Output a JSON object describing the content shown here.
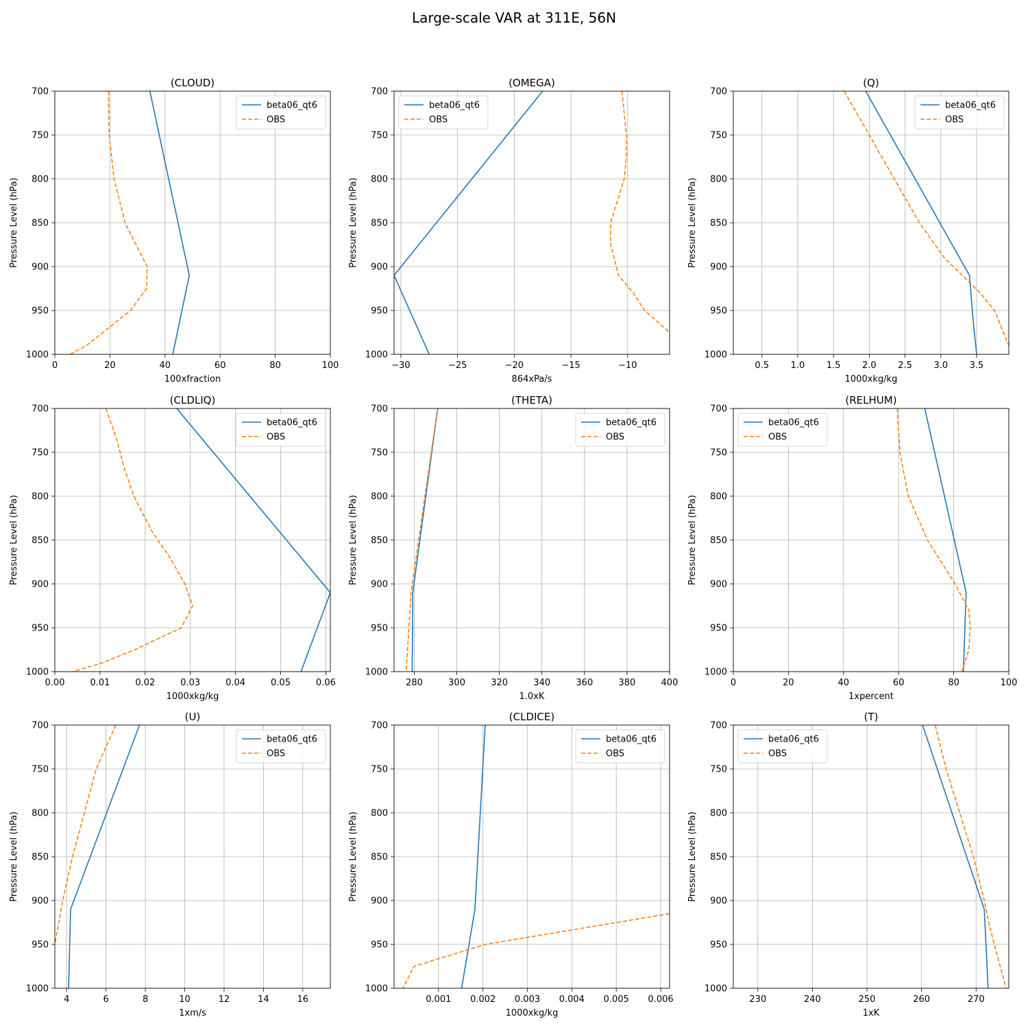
{
  "figure_title": "Large-scale VAR at 311E, 56N",
  "colors": {
    "model": "#1f77b4",
    "obs": "#ff7f0e",
    "grid": "#b0b0b0"
  },
  "chart_data": [
    {
      "type": "line",
      "title": "(CLOUD)",
      "xlabel": "100xfraction",
      "ylabel": "Pressure Level (hPa)",
      "xlim": [
        0,
        100
      ],
      "ylim": [
        1000,
        700
      ],
      "xticks": [
        0,
        20,
        40,
        60,
        80,
        100
      ],
      "xtick_labels": [
        "0",
        "20",
        "40",
        "60",
        "80",
        "100"
      ],
      "yticks": [
        700,
        750,
        800,
        850,
        900,
        950,
        1000
      ],
      "legend_loc": "top-right",
      "series": [
        {
          "name": "beta06_qt6",
          "style": "solid",
          "x": [
            34.5,
            48.8,
            42.8
          ],
          "y": [
            700,
            910,
            1000
          ]
        },
        {
          "name": "OBS",
          "style": "dashed",
          "x": [
            19.5,
            19.7,
            21.5,
            25.5,
            33.5,
            33.3,
            27.5,
            19.5,
            11.5,
            5.5
          ],
          "y": [
            700,
            750,
            800,
            850,
            900,
            925,
            950,
            970,
            990,
            1000
          ]
        }
      ]
    },
    {
      "type": "line",
      "title": "(OMEGA)",
      "xlabel": "864xPa/s",
      "ylabel": "Pressure Level (hPa)",
      "xlim": [
        -30.6,
        -6.3
      ],
      "ylim": [
        1000,
        700
      ],
      "xticks": [
        -30,
        -25,
        -20,
        -15,
        -10
      ],
      "xtick_labels": [
        "−30",
        "−25",
        "−20",
        "−15",
        "−10"
      ],
      "yticks": [
        700,
        750,
        800,
        850,
        900,
        950,
        1000
      ],
      "legend_loc": "top-left",
      "series": [
        {
          "name": "beta06_qt6",
          "style": "solid",
          "x": [
            -17.5,
            -30.6,
            -27.5
          ],
          "y": [
            700,
            910,
            1000
          ]
        },
        {
          "name": "OBS",
          "style": "dashed",
          "x": [
            -10.5,
            -10.1,
            -10.1,
            -10.3,
            -11.5,
            -11.5,
            -10.8,
            -9.5,
            -8.5,
            -6.3
          ],
          "y": [
            700,
            750,
            775,
            800,
            850,
            875,
            910,
            930,
            950,
            975
          ]
        }
      ]
    },
    {
      "type": "line",
      "title": "(Q)",
      "xlabel": "1000xkg/kg",
      "ylabel": "Pressure Level (hPa)",
      "xlim": [
        0.1,
        3.95
      ],
      "ylim": [
        1000,
        700
      ],
      "xticks": [
        0.5,
        1.0,
        1.5,
        2.0,
        2.5,
        3.0,
        3.5
      ],
      "xtick_labels": [
        "0.5",
        "1.0",
        "1.5",
        "2.0",
        "2.5",
        "3.0",
        "3.5"
      ],
      "yticks": [
        700,
        750,
        800,
        850,
        900,
        950,
        1000
      ],
      "legend_loc": "top-right",
      "series": [
        {
          "name": "beta06_qt6",
          "style": "solid",
          "x": [
            1.95,
            3.4,
            3.45,
            3.5
          ],
          "y": [
            700,
            910,
            960,
            1000
          ]
        },
        {
          "name": "OBS",
          "style": "dashed",
          "x": [
            1.65,
            2.0,
            2.35,
            2.7,
            3.05,
            3.3,
            3.55,
            3.75,
            3.95
          ],
          "y": [
            700,
            750,
            800,
            850,
            890,
            910,
            930,
            950,
            990
          ]
        }
      ]
    },
    {
      "type": "line",
      "title": "(CLDLIQ)",
      "xlabel": "1000xkg/kg",
      "ylabel": "Pressure Level (hPa)",
      "xlim": [
        0,
        0.061
      ],
      "ylim": [
        1000,
        700
      ],
      "xticks": [
        0.0,
        0.01,
        0.02,
        0.03,
        0.04,
        0.05,
        0.06
      ],
      "xtick_labels": [
        "0.00",
        "0.01",
        "0.02",
        "0.03",
        "0.04",
        "0.05",
        "0.06"
      ],
      "yticks": [
        700,
        750,
        800,
        850,
        900,
        950,
        1000
      ],
      "legend_loc": "top-right",
      "series": [
        {
          "name": "beta06_qt6",
          "style": "solid",
          "x": [
            0.027,
            0.061,
            0.0545
          ],
          "y": [
            700,
            910,
            1000
          ]
        },
        {
          "name": "OBS",
          "style": "dashed",
          "x": [
            0.0113,
            0.0137,
            0.0155,
            0.0175,
            0.0215,
            0.0255,
            0.0288,
            0.0305,
            0.028,
            0.0177,
            0.0105,
            0.004
          ],
          "y": [
            700,
            735,
            770,
            800,
            840,
            870,
            900,
            925,
            950,
            975,
            990,
            1000
          ]
        }
      ]
    },
    {
      "type": "line",
      "title": "(THETA)",
      "xlabel": "1.0xK",
      "ylabel": "Pressure Level (hPa)",
      "xlim": [
        270.5,
        400
      ],
      "ylim": [
        1000,
        700
      ],
      "xticks": [
        280,
        300,
        320,
        340,
        360,
        380,
        400
      ],
      "xtick_labels": [
        "280",
        "300",
        "320",
        "340",
        "360",
        "380",
        "400"
      ],
      "yticks": [
        700,
        750,
        800,
        850,
        900,
        950,
        1000
      ],
      "legend_loc": "top-right",
      "series": [
        {
          "name": "beta06_qt6",
          "style": "solid",
          "x": [
            291,
            279.3,
            279.0
          ],
          "y": [
            700,
            910,
            1000
          ]
        },
        {
          "name": "OBS",
          "style": "dashed",
          "x": [
            291,
            285,
            278.5,
            276.2
          ],
          "y": [
            700,
            800,
            910,
            1000
          ]
        }
      ]
    },
    {
      "type": "line",
      "title": "(RELHUM)",
      "xlabel": "1xpercent",
      "ylabel": "Pressure Level (hPa)",
      "xlim": [
        0,
        100
      ],
      "ylim": [
        1000,
        700
      ],
      "xticks": [
        0,
        20,
        40,
        60,
        80,
        100
      ],
      "xtick_labels": [
        "0",
        "20",
        "40",
        "60",
        "80",
        "100"
      ],
      "yticks": [
        700,
        750,
        800,
        850,
        900,
        950,
        1000
      ],
      "legend_loc": "top-left",
      "series": [
        {
          "name": "beta06_qt6",
          "style": "solid",
          "x": [
            69.5,
            84.5,
            83.5
          ],
          "y": [
            700,
            910,
            1000
          ]
        },
        {
          "name": "OBS",
          "style": "dashed",
          "x": [
            59.5,
            60.5,
            63.5,
            70.5,
            80.5,
            85.5,
            86,
            85.5,
            83
          ],
          "y": [
            700,
            750,
            800,
            850,
            900,
            930,
            950,
            975,
            1000
          ]
        }
      ]
    },
    {
      "type": "line",
      "title": "(U)",
      "xlabel": "1xm/s",
      "ylabel": "Pressure Level (hPa)",
      "xlim": [
        3.4,
        17.4
      ],
      "ylim": [
        1000,
        700
      ],
      "xticks": [
        4,
        6,
        8,
        10,
        12,
        14,
        16
      ],
      "xtick_labels": [
        "4",
        "6",
        "8",
        "10",
        "12",
        "14",
        "16"
      ],
      "yticks": [
        700,
        750,
        800,
        850,
        900,
        950,
        1000
      ],
      "legend_loc": "top-right",
      "series": [
        {
          "name": "beta06_qt6",
          "style": "solid",
          "x": [
            7.7,
            4.2,
            4.1
          ],
          "y": [
            700,
            910,
            1000
          ]
        },
        {
          "name": "OBS",
          "style": "dashed",
          "x": [
            6.5,
            5.5,
            4.9,
            4.3,
            3.8,
            3.4
          ],
          "y": [
            700,
            750,
            800,
            850,
            900,
            950
          ]
        }
      ]
    },
    {
      "type": "line",
      "title": "(CLDICE)",
      "xlabel": "1000xkg/kg",
      "ylabel": "Pressure Level (hPa)",
      "xlim": [
        0.0,
        0.0062
      ],
      "ylim": [
        1000,
        700
      ],
      "xticks": [
        0.001,
        0.002,
        0.003,
        0.004,
        0.005,
        0.006
      ],
      "xtick_labels": [
        "0.001",
        "0.002",
        "0.003",
        "0.004",
        "0.005",
        "0.006"
      ],
      "yticks": [
        700,
        750,
        800,
        850,
        900,
        950,
        1000
      ],
      "legend_loc": "top-right",
      "series": [
        {
          "name": "beta06_qt6",
          "style": "solid",
          "x": [
            0.00205,
            0.00182,
            0.00152
          ],
          "y": [
            700,
            910,
            1000
          ]
        },
        {
          "name": "OBS",
          "style": "dashed",
          "x": [
            0.0062,
            0.00205,
            0.00045,
            0.0002
          ],
          "y": [
            915,
            950,
            975,
            1000
          ]
        }
      ]
    },
    {
      "type": "line",
      "title": "(T)",
      "xlabel": "1xK",
      "ylabel": "Pressure Level (hPa)",
      "xlim": [
        225.5,
        276
      ],
      "ylim": [
        1000,
        700
      ],
      "xticks": [
        230,
        240,
        250,
        260,
        270
      ],
      "xtick_labels": [
        "230",
        "240",
        "250",
        "260",
        "270"
      ],
      "yticks": [
        700,
        750,
        800,
        850,
        900,
        950,
        1000
      ],
      "legend_loc": "top-left",
      "series": [
        {
          "name": "beta06_qt6",
          "style": "solid",
          "x": [
            260.2,
            271.5,
            272.2
          ],
          "y": [
            700,
            910,
            1000
          ]
        },
        {
          "name": "OBS",
          "style": "dashed",
          "x": [
            262.5,
            264.5,
            267,
            269.5,
            271.5,
            272.5,
            275.5
          ],
          "y": [
            700,
            750,
            800,
            850,
            900,
            930,
            1000
          ]
        }
      ]
    }
  ]
}
